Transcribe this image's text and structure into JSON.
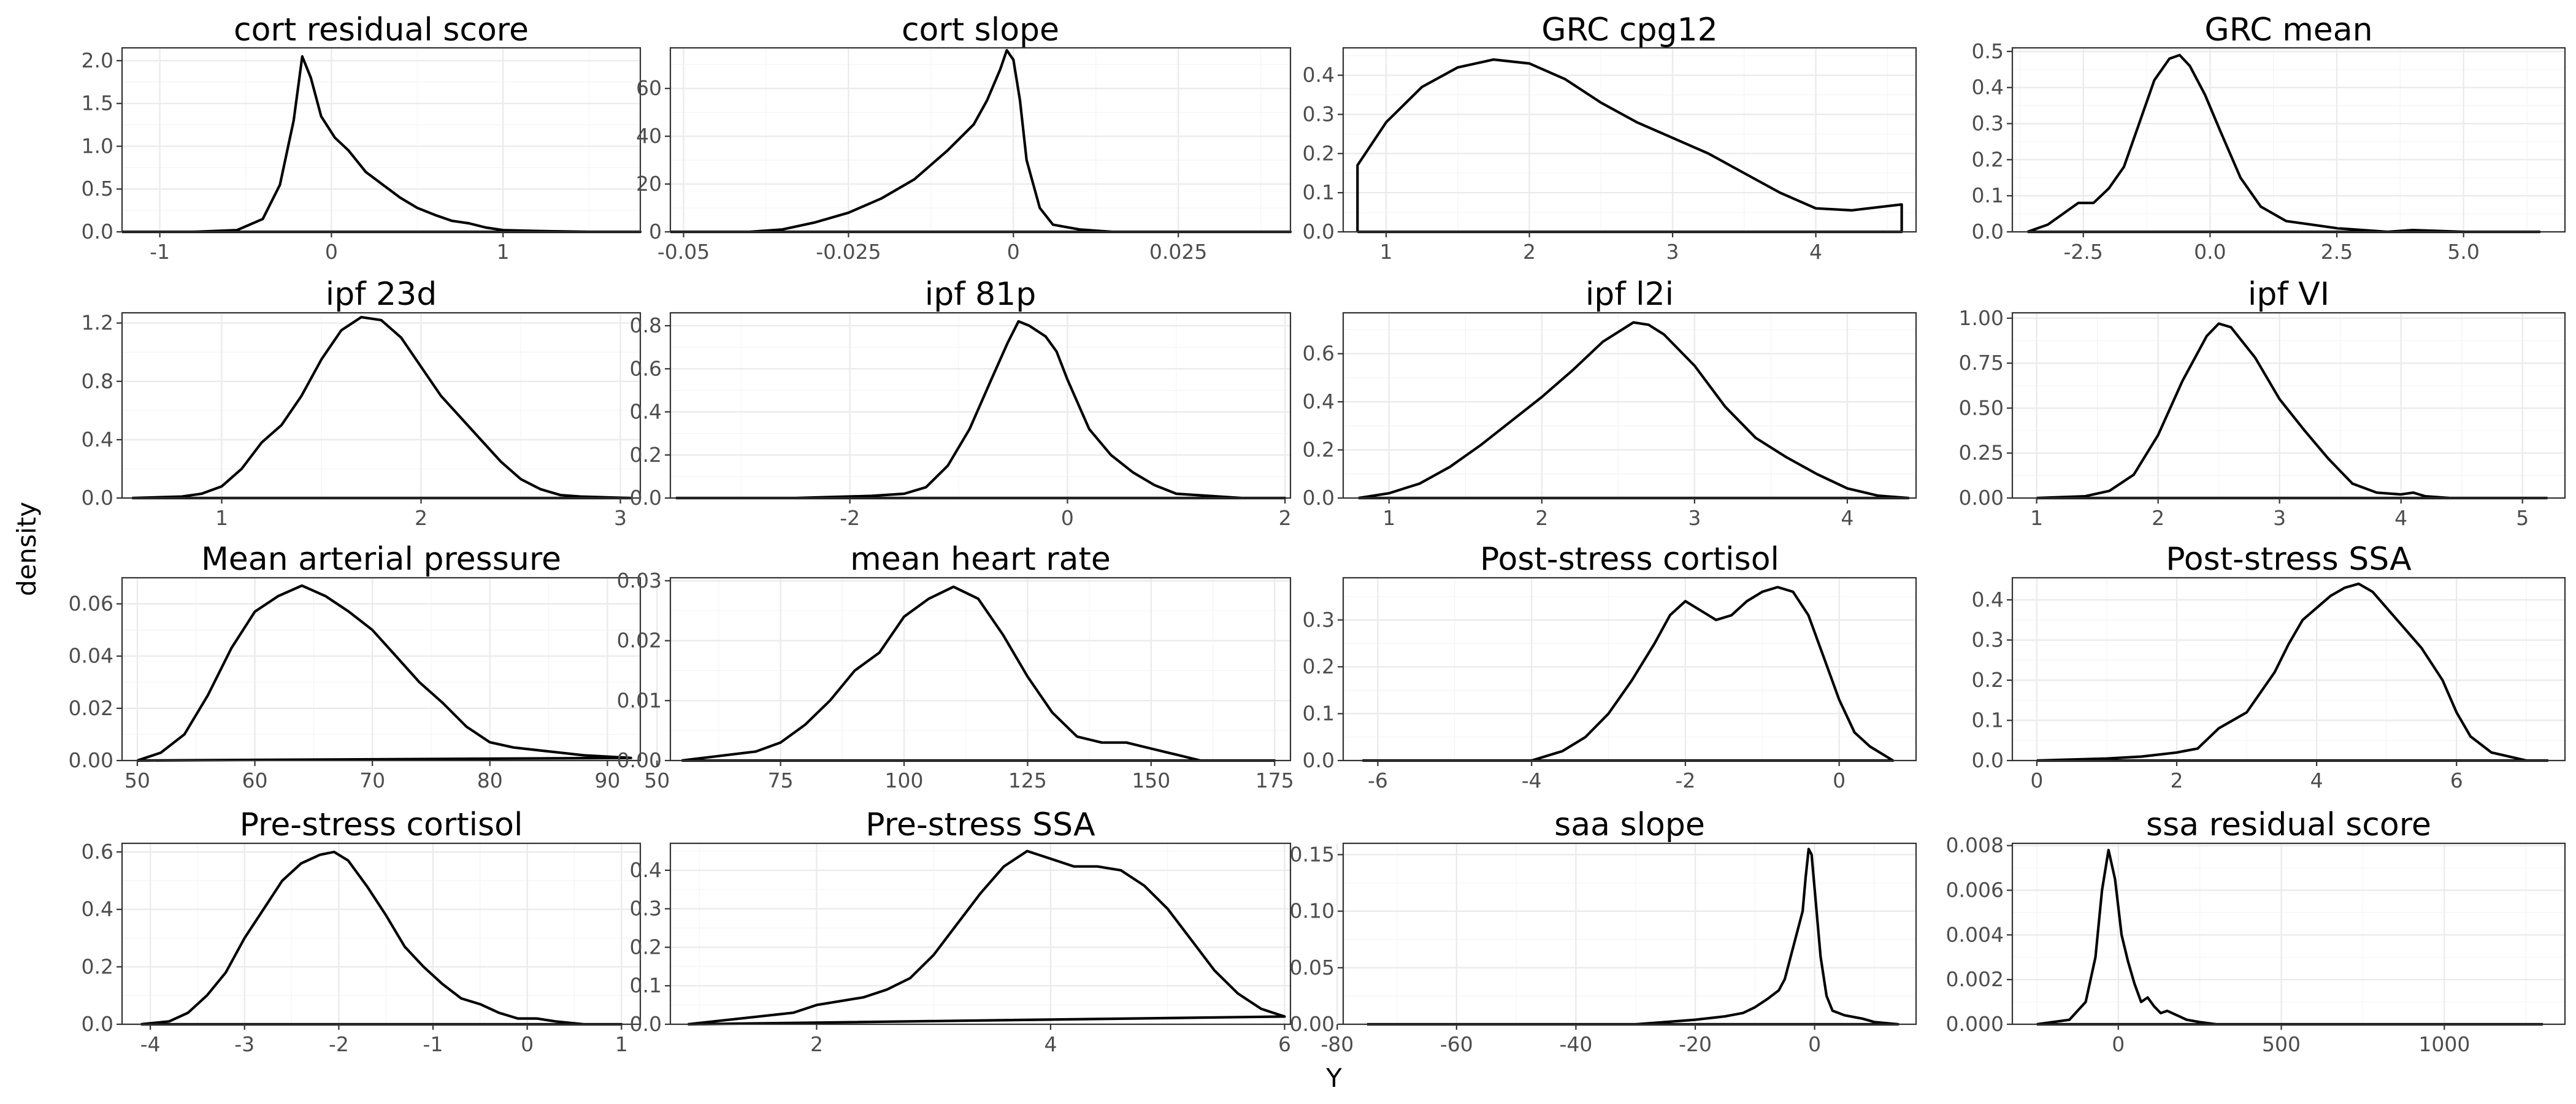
{
  "figure": {
    "xlabel": "Y",
    "ylabel": "density"
  },
  "chart_data": [
    {
      "type": "area",
      "title": "cort residual score",
      "xlim": [
        -1.22,
        1.8
      ],
      "ylim": [
        0,
        2.15
      ],
      "xticks": [
        -1,
        0,
        1
      ],
      "yticks": [
        0.0,
        0.5,
        1.0,
        1.5,
        2.0
      ],
      "ytick_labels": [
        "0.0",
        "0.5",
        "1.0",
        "1.5",
        "2.0"
      ],
      "x": [
        -1.22,
        -0.8,
        -0.55,
        -0.4,
        -0.3,
        -0.22,
        -0.17,
        -0.12,
        -0.06,
        0.02,
        0.1,
        0.2,
        0.3,
        0.4,
        0.5,
        0.6,
        0.7,
        0.8,
        0.9,
        1.0,
        1.2,
        1.5,
        1.8
      ],
      "y": [
        0.0,
        0.0,
        0.02,
        0.15,
        0.55,
        1.3,
        2.05,
        1.8,
        1.35,
        1.1,
        0.95,
        0.7,
        0.55,
        0.4,
        0.28,
        0.2,
        0.13,
        0.1,
        0.05,
        0.02,
        0.01,
        0.0,
        0.0
      ]
    },
    {
      "type": "area",
      "title": "cort slope",
      "xlim": [
        -0.052,
        0.042
      ],
      "ylim": [
        0,
        77
      ],
      "xticks": [
        -0.05,
        -0.025,
        0.0,
        0.025
      ],
      "yticks": [
        0,
        20,
        40,
        60
      ],
      "ytick_labels": [
        "0",
        "20",
        "40",
        "60"
      ],
      "x": [
        -0.052,
        -0.045,
        -0.04,
        -0.035,
        -0.03,
        -0.025,
        -0.02,
        -0.015,
        -0.01,
        -0.006,
        -0.004,
        -0.002,
        -0.001,
        0.0,
        0.001,
        0.002,
        0.004,
        0.006,
        0.01,
        0.015,
        0.02,
        0.03,
        0.042
      ],
      "y": [
        0.0,
        0.0,
        0.0,
        1.0,
        4.0,
        8.0,
        14.0,
        22.0,
        34.0,
        45.0,
        55.0,
        68.0,
        76.0,
        72.0,
        55.0,
        30.0,
        10.0,
        3.0,
        1.0,
        0.0,
        0.0,
        0.0,
        0.0
      ]
    },
    {
      "type": "area",
      "title": "GRC cpg12",
      "xlim": [
        0.7,
        4.7
      ],
      "ylim": [
        0,
        0.47
      ],
      "xticks": [
        1,
        2,
        3,
        4
      ],
      "yticks": [
        0.0,
        0.1,
        0.2,
        0.3,
        0.4
      ],
      "ytick_labels": [
        "0.0",
        "0.1",
        "0.2",
        "0.3",
        "0.4"
      ],
      "x": [
        0.8,
        0.8,
        1.0,
        1.25,
        1.5,
        1.75,
        2.0,
        2.25,
        2.5,
        2.75,
        3.0,
        3.25,
        3.5,
        3.75,
        4.0,
        4.25,
        4.6,
        4.6,
        0.8
      ],
      "y": [
        0.0,
        0.17,
        0.28,
        0.37,
        0.42,
        0.44,
        0.43,
        0.39,
        0.33,
        0.28,
        0.24,
        0.2,
        0.15,
        0.1,
        0.06,
        0.055,
        0.07,
        0.0,
        0.0
      ]
    },
    {
      "type": "area",
      "title": "GRC mean",
      "xlim": [
        -3.9,
        7.0
      ],
      "ylim": [
        0,
        0.51
      ],
      "xticks": [
        -2.5,
        0.0,
        2.5,
        5.0
      ],
      "xtick_labels": [
        "-2.5",
        "0.0",
        "2.5",
        "5.0"
      ],
      "yticks": [
        0.0,
        0.1,
        0.2,
        0.3,
        0.4,
        0.5
      ],
      "ytick_labels": [
        "0.0",
        "0.1",
        "0.2",
        "0.3",
        "0.4",
        "0.5"
      ],
      "x": [
        -3.6,
        -3.2,
        -2.8,
        -2.6,
        -2.3,
        -2.0,
        -1.7,
        -1.4,
        -1.1,
        -0.8,
        -0.6,
        -0.4,
        -0.1,
        0.2,
        0.6,
        1.0,
        1.5,
        2.0,
        2.5,
        3.5,
        4.0,
        5.0,
        6.5
      ],
      "y": [
        0.0,
        0.02,
        0.06,
        0.08,
        0.08,
        0.12,
        0.18,
        0.3,
        0.42,
        0.48,
        0.49,
        0.46,
        0.38,
        0.28,
        0.15,
        0.07,
        0.03,
        0.02,
        0.01,
        0.0,
        0.005,
        0.0,
        0.0
      ]
    },
    {
      "type": "area",
      "title": "ipf 23d",
      "xlim": [
        0.5,
        3.1
      ],
      "ylim": [
        0,
        1.27
      ],
      "xticks": [
        1,
        2,
        3
      ],
      "yticks": [
        0.0,
        0.4,
        0.8,
        1.2
      ],
      "ytick_labels": [
        "0.0",
        "0.4",
        "0.8",
        "1.2"
      ],
      "x": [
        0.55,
        0.8,
        0.9,
        1.0,
        1.1,
        1.2,
        1.3,
        1.4,
        1.5,
        1.6,
        1.7,
        1.8,
        1.9,
        2.0,
        2.1,
        2.2,
        2.3,
        2.4,
        2.5,
        2.6,
        2.7,
        2.8,
        3.05
      ],
      "y": [
        0.0,
        0.01,
        0.03,
        0.08,
        0.2,
        0.38,
        0.5,
        0.7,
        0.95,
        1.15,
        1.24,
        1.22,
        1.1,
        0.9,
        0.7,
        0.55,
        0.4,
        0.25,
        0.13,
        0.06,
        0.02,
        0.01,
        0.0
      ]
    },
    {
      "type": "area",
      "title": "ipf 81p",
      "xlim": [
        -3.65,
        2.05
      ],
      "ylim": [
        0,
        0.86
      ],
      "xticks": [
        -2,
        0,
        2
      ],
      "yticks": [
        0.0,
        0.2,
        0.4,
        0.6,
        0.8
      ],
      "ytick_labels": [
        "0.0",
        "0.2",
        "0.4",
        "0.6",
        "0.8"
      ],
      "x": [
        -3.6,
        -2.5,
        -1.8,
        -1.5,
        -1.3,
        -1.1,
        -0.9,
        -0.7,
        -0.55,
        -0.45,
        -0.35,
        -0.2,
        -0.1,
        0.0,
        0.2,
        0.4,
        0.6,
        0.8,
        1.0,
        1.3,
        1.6,
        2.0
      ],
      "y": [
        0.0,
        0.0,
        0.01,
        0.02,
        0.05,
        0.15,
        0.32,
        0.55,
        0.72,
        0.82,
        0.8,
        0.75,
        0.68,
        0.55,
        0.32,
        0.2,
        0.12,
        0.06,
        0.02,
        0.01,
        0.0,
        0.0
      ]
    },
    {
      "type": "area",
      "title": "ipf l2i",
      "xlim": [
        0.7,
        4.45
      ],
      "ylim": [
        0,
        0.77
      ],
      "xticks": [
        1,
        2,
        3,
        4
      ],
      "yticks": [
        0.0,
        0.2,
        0.4,
        0.6
      ],
      "ytick_labels": [
        "0.0",
        "0.2",
        "0.4",
        "0.6"
      ],
      "x": [
        0.8,
        1.0,
        1.2,
        1.4,
        1.6,
        1.8,
        2.0,
        2.2,
        2.4,
        2.6,
        2.7,
        2.8,
        3.0,
        3.2,
        3.4,
        3.6,
        3.8,
        4.0,
        4.2,
        4.4
      ],
      "y": [
        0.0,
        0.02,
        0.06,
        0.13,
        0.22,
        0.32,
        0.42,
        0.53,
        0.65,
        0.73,
        0.72,
        0.68,
        0.55,
        0.38,
        0.25,
        0.17,
        0.1,
        0.04,
        0.01,
        0.0
      ]
    },
    {
      "type": "area",
      "title": "ipf VI",
      "xlim": [
        0.8,
        5.35
      ],
      "ylim": [
        0,
        1.03
      ],
      "xticks": [
        1,
        2,
        3,
        4,
        5
      ],
      "yticks": [
        0.0,
        0.25,
        0.5,
        0.75,
        1.0
      ],
      "ytick_labels": [
        "0.00",
        "0.25",
        "0.50",
        "0.75",
        "1.00"
      ],
      "x": [
        1.0,
        1.4,
        1.6,
        1.8,
        2.0,
        2.2,
        2.4,
        2.5,
        2.6,
        2.8,
        3.0,
        3.2,
        3.4,
        3.6,
        3.8,
        4.0,
        4.1,
        4.2,
        4.4,
        4.8,
        5.2
      ],
      "y": [
        0.0,
        0.01,
        0.04,
        0.13,
        0.35,
        0.65,
        0.9,
        0.97,
        0.95,
        0.78,
        0.55,
        0.38,
        0.22,
        0.08,
        0.03,
        0.02,
        0.03,
        0.01,
        0.0,
        0.0,
        0.0
      ]
    },
    {
      "type": "area",
      "title": "Mean arterial pressure",
      "xlim": [
        48.7,
        92.8
      ],
      "ylim": [
        0,
        0.07
      ],
      "xticks": [
        50,
        60,
        70,
        80,
        90
      ],
      "yticks": [
        0.0,
        0.02,
        0.04,
        0.06
      ],
      "ytick_labels": [
        "0.00",
        "0.02",
        "0.04",
        "0.06"
      ],
      "x": [
        50,
        52,
        54,
        56,
        58,
        60,
        62,
        64,
        66,
        68,
        70,
        72,
        74,
        76,
        78,
        80,
        82,
        84,
        86,
        88,
        90,
        92
      ],
      "y": [
        0.0,
        0.003,
        0.01,
        0.025,
        0.043,
        0.057,
        0.063,
        0.067,
        0.063,
        0.057,
        0.05,
        0.04,
        0.03,
        0.022,
        0.013,
        0.007,
        0.005,
        0.004,
        0.003,
        0.002,
        0.0015,
        0.001
      ]
    },
    {
      "type": "area",
      "title": "mean heart rate",
      "xlim": [
        52.7,
        178.2
      ],
      "ylim": [
        0,
        0.0305
      ],
      "xticks": [
        50,
        75,
        100,
        125,
        150,
        175
      ],
      "yticks": [
        0.0,
        0.01,
        0.02,
        0.03
      ],
      "ytick_labels": [
        "0.00",
        "0.01",
        "0.02",
        "0.03"
      ],
      "x": [
        55,
        60,
        65,
        70,
        75,
        80,
        85,
        90,
        95,
        100,
        105,
        110,
        115,
        120,
        125,
        130,
        135,
        140,
        145,
        150,
        155,
        160,
        165,
        175
      ],
      "y": [
        0.0,
        0.0005,
        0.001,
        0.0015,
        0.003,
        0.006,
        0.01,
        0.015,
        0.018,
        0.024,
        0.027,
        0.029,
        0.027,
        0.021,
        0.014,
        0.008,
        0.004,
        0.003,
        0.003,
        0.002,
        0.001,
        0.0,
        0.0,
        0.0
      ]
    },
    {
      "type": "area",
      "title": "Post-stress cortisol",
      "xlim": [
        -6.45,
        1.0
      ],
      "ylim": [
        0,
        0.39
      ],
      "xticks": [
        -6,
        -4,
        -2,
        0
      ],
      "yticks": [
        0.0,
        0.1,
        0.2,
        0.3
      ],
      "ytick_labels": [
        "0.0",
        "0.1",
        "0.2",
        "0.3"
      ],
      "x": [
        -6.2,
        -5.0,
        -4.0,
        -3.6,
        -3.3,
        -3.0,
        -2.7,
        -2.4,
        -2.2,
        -2.0,
        -1.8,
        -1.6,
        -1.4,
        -1.2,
        -1.0,
        -0.8,
        -0.6,
        -0.4,
        -0.2,
        0.0,
        0.2,
        0.4,
        0.7
      ],
      "y": [
        0.0,
        0.0,
        0.0,
        0.02,
        0.05,
        0.1,
        0.17,
        0.25,
        0.31,
        0.34,
        0.32,
        0.3,
        0.31,
        0.34,
        0.36,
        0.37,
        0.36,
        0.31,
        0.22,
        0.13,
        0.06,
        0.03,
        0.0
      ]
    },
    {
      "type": "area",
      "title": "Post-stress SSA",
      "xlim": [
        -0.35,
        7.55
      ],
      "ylim": [
        0,
        0.455
      ],
      "xticks": [
        0,
        2,
        4,
        6
      ],
      "yticks": [
        0.0,
        0.1,
        0.2,
        0.3,
        0.4
      ],
      "ytick_labels": [
        "0.0",
        "0.1",
        "0.2",
        "0.3",
        "0.4"
      ],
      "x": [
        0.0,
        1.0,
        1.5,
        2.0,
        2.3,
        2.6,
        2.8,
        3.0,
        3.2,
        3.4,
        3.6,
        3.8,
        4.0,
        4.2,
        4.4,
        4.6,
        4.8,
        5.0,
        5.2,
        5.5,
        5.8,
        6.0,
        6.2,
        6.5,
        7.0,
        7.3
      ],
      "y": [
        0.0,
        0.005,
        0.01,
        0.02,
        0.03,
        0.08,
        0.1,
        0.12,
        0.17,
        0.22,
        0.29,
        0.35,
        0.38,
        0.41,
        0.43,
        0.44,
        0.42,
        0.38,
        0.34,
        0.28,
        0.2,
        0.12,
        0.06,
        0.02,
        0.0,
        0.0
      ]
    },
    {
      "type": "area",
      "title": "Pre-stress cortisol",
      "xlim": [
        -4.3,
        1.2
      ],
      "ylim": [
        0,
        0.63
      ],
      "xticks": [
        -4,
        -3,
        -2,
        -1,
        0,
        1
      ],
      "yticks": [
        0.0,
        0.2,
        0.4,
        0.6
      ],
      "ytick_labels": [
        "0.0",
        "0.2",
        "0.4",
        "0.6"
      ],
      "x": [
        -4.1,
        -3.8,
        -3.6,
        -3.4,
        -3.2,
        -3.0,
        -2.8,
        -2.6,
        -2.4,
        -2.2,
        -2.05,
        -1.9,
        -1.7,
        -1.5,
        -1.3,
        -1.1,
        -0.9,
        -0.7,
        -0.5,
        -0.3,
        -0.1,
        0.1,
        0.3,
        0.6,
        1.0
      ],
      "y": [
        0.0,
        0.01,
        0.04,
        0.1,
        0.18,
        0.3,
        0.4,
        0.5,
        0.56,
        0.59,
        0.6,
        0.57,
        0.48,
        0.38,
        0.27,
        0.2,
        0.14,
        0.09,
        0.07,
        0.04,
        0.02,
        0.02,
        0.01,
        0.0,
        0.0
      ]
    },
    {
      "type": "area",
      "title": "Pre-stress SSA",
      "xlim": [
        0.75,
        6.05
      ],
      "ylim": [
        0,
        0.47
      ],
      "xticks": [
        2,
        4,
        6
      ],
      "yticks": [
        0.0,
        0.1,
        0.2,
        0.3,
        0.4
      ],
      "ytick_labels": [
        "0.0",
        "0.1",
        "0.2",
        "0.3",
        "0.4"
      ],
      "x": [
        0.9,
        1.2,
        1.5,
        1.8,
        2.0,
        2.2,
        2.4,
        2.6,
        2.8,
        3.0,
        3.2,
        3.4,
        3.6,
        3.8,
        4.0,
        4.2,
        4.4,
        4.6,
        4.8,
        5.0,
        5.2,
        5.4,
        5.6,
        5.8,
        6.0
      ],
      "y": [
        0.0,
        0.01,
        0.02,
        0.03,
        0.05,
        0.06,
        0.07,
        0.09,
        0.12,
        0.18,
        0.26,
        0.34,
        0.41,
        0.45,
        0.43,
        0.41,
        0.41,
        0.4,
        0.36,
        0.3,
        0.22,
        0.14,
        0.08,
        0.04,
        0.02
      ]
    },
    {
      "type": "area",
      "title": "saa slope",
      "xlim": [
        -79,
        17
      ],
      "ylim": [
        0,
        0.16
      ],
      "xticks": [
        -80,
        -60,
        -40,
        -20,
        0
      ],
      "yticks": [
        0.0,
        0.05,
        0.1,
        0.15
      ],
      "ytick_labels": [
        "0.00",
        "0.05",
        "0.10",
        "0.15"
      ],
      "x": [
        -75,
        -40,
        -30,
        -25,
        -20,
        -15,
        -12,
        -10,
        -8,
        -6,
        -5,
        -4,
        -3,
        -2,
        -1.5,
        -1,
        -0.5,
        0,
        1,
        2,
        3,
        5,
        8,
        10,
        14
      ],
      "y": [
        0.0,
        0.0,
        0.0,
        0.002,
        0.004,
        0.007,
        0.01,
        0.015,
        0.022,
        0.03,
        0.04,
        0.06,
        0.08,
        0.1,
        0.13,
        0.155,
        0.15,
        0.12,
        0.06,
        0.025,
        0.012,
        0.008,
        0.005,
        0.002,
        0.0
      ]
    },
    {
      "type": "area",
      "title": "ssa residual score",
      "xlim": [
        -325,
        1370
      ],
      "ylim": [
        0,
        0.0081
      ],
      "xticks": [
        0,
        500,
        1000
      ],
      "yticks": [
        0.0,
        0.002,
        0.004,
        0.006,
        0.008
      ],
      "ytick_labels": [
        "0.000",
        "0.002",
        "0.004",
        "0.006",
        "0.008"
      ],
      "x": [
        -250,
        -150,
        -100,
        -70,
        -50,
        -30,
        -10,
        10,
        30,
        50,
        70,
        90,
        110,
        130,
        150,
        180,
        210,
        250,
        300,
        400,
        600,
        1000,
        1300
      ],
      "y": [
        0.0,
        0.0002,
        0.001,
        0.003,
        0.006,
        0.0078,
        0.0065,
        0.004,
        0.0028,
        0.0018,
        0.001,
        0.0012,
        0.0008,
        0.0005,
        0.0006,
        0.0004,
        0.0002,
        0.0001,
        0.0,
        0.0,
        0.0,
        0.0,
        0.0
      ]
    }
  ]
}
